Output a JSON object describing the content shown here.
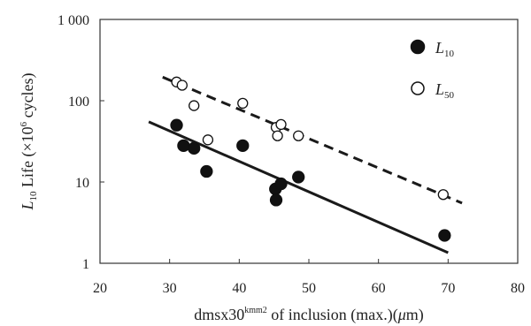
{
  "chart_data": {
    "type": "scatter",
    "xlabel": "dmsx30",
    "xlabel_sup": "kmm2",
    "xlabel_rest": " of inclusion (max.)(",
    "xlabel_mu": "μ",
    "xlabel_end": "m)",
    "ylabel_L": "L",
    "ylabel_sub": "10",
    "ylabel_rest": " Life (×10",
    "ylabel_sup": "6",
    "ylabel_end": " cycles)",
    "xlim": [
      20,
      80
    ],
    "ylim": [
      1,
      1000
    ],
    "yscale": "log",
    "x_ticks": [
      "20",
      "30",
      "40",
      "50",
      "60",
      "70",
      "80"
    ],
    "x_tick_values": [
      20,
      30,
      40,
      50,
      60,
      70,
      80
    ],
    "y_ticks": [
      "1",
      "10",
      "100",
      "1 000"
    ],
    "y_tick_values": [
      1,
      10,
      100,
      1000
    ],
    "legend_position": "top-right",
    "series": [
      {
        "name": "L10",
        "label_main": "L",
        "label_sub": "10",
        "marker": "filled-circle",
        "color": "#111111",
        "points": [
          {
            "x": 31,
            "y": 50
          },
          {
            "x": 32,
            "y": 28
          },
          {
            "x": 33.5,
            "y": 26
          },
          {
            "x": 35.3,
            "y": 13.5
          },
          {
            "x": 40.5,
            "y": 28
          },
          {
            "x": 45.2,
            "y": 8.2
          },
          {
            "x": 45.3,
            "y": 6
          },
          {
            "x": 46,
            "y": 9.5
          },
          {
            "x": 48.5,
            "y": 11.5
          },
          {
            "x": 69.5,
            "y": 2.2
          }
        ],
        "trend": {
          "style": "solid",
          "x": [
            27,
            70
          ],
          "y": [
            55,
            1.35
          ]
        }
      },
      {
        "name": "L50",
        "label_main": "L",
        "label_sub": "50",
        "marker": "open-circle",
        "color": "#111111",
        "points": [
          {
            "x": 31,
            "y": 170
          },
          {
            "x": 31.8,
            "y": 155
          },
          {
            "x": 33.5,
            "y": 87
          },
          {
            "x": 35.5,
            "y": 33
          },
          {
            "x": 40.5,
            "y": 93
          },
          {
            "x": 45.3,
            "y": 47
          },
          {
            "x": 45.5,
            "y": 37
          },
          {
            "x": 46,
            "y": 51
          },
          {
            "x": 48.5,
            "y": 37
          },
          {
            "x": 69.3,
            "y": 7
          }
        ],
        "trend": {
          "style": "dashed",
          "x": [
            29,
            72
          ],
          "y": [
            195,
            5.5
          ]
        }
      }
    ]
  }
}
